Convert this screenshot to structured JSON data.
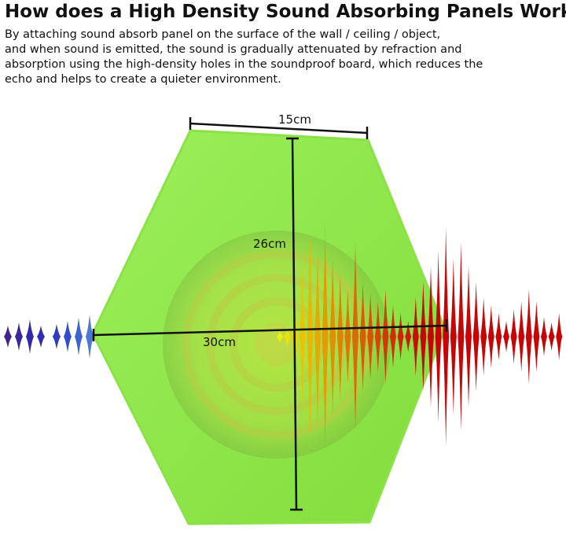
{
  "title": "How does a High Density Sound Absorbing Panels Works",
  "description": [
    "By attaching sound absorb panel on the surface of the wall / ceiling / object,",
    "and when sound is emitted, the sound is gradually attenuated by refraction and",
    "absorption using the high-density holes in the soundproof board, which reduces the",
    "echo and helps to create a quieter environment."
  ],
  "dimensions": {
    "width_top": "15cm",
    "height": "26cm",
    "width": "30cm"
  }
}
